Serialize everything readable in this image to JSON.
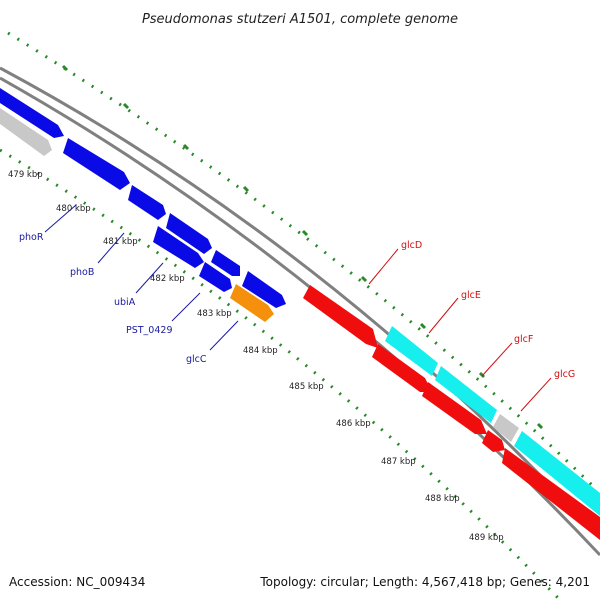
{
  "title": "Pseudomonas stutzeri A1501, complete genome",
  "footer": {
    "accession": "Accession: NC_009434",
    "summary": "Topology: circular; Length: 4,567,418 bp; Genes: 4,201"
  },
  "colors": {
    "forward_gene": "#0a0ae6",
    "highlight_gene": "#f5900c",
    "reverse_gene": "#f00d0d",
    "cds_track": "#17eeee",
    "other_feature": "#c8c8c8",
    "backbone": "#808080",
    "tick_dots": "#2a8a2a",
    "forward_label": "#1a1aa0",
    "reverse_label": "#d01010"
  },
  "ticks": [
    "479 kbp",
    "480 kbp",
    "481 kbp",
    "482 kbp",
    "483 kbp",
    "484 kbp",
    "485 kbp",
    "486 kbp",
    "487 kbp",
    "488 kbp",
    "489 kbp"
  ],
  "gene_labels": {
    "forward": [
      "phoR",
      "phoB",
      "ubiA",
      "PST_0429",
      "glcC"
    ],
    "reverse": [
      "glcD",
      "glcE",
      "glcF",
      "glcG"
    ]
  }
}
